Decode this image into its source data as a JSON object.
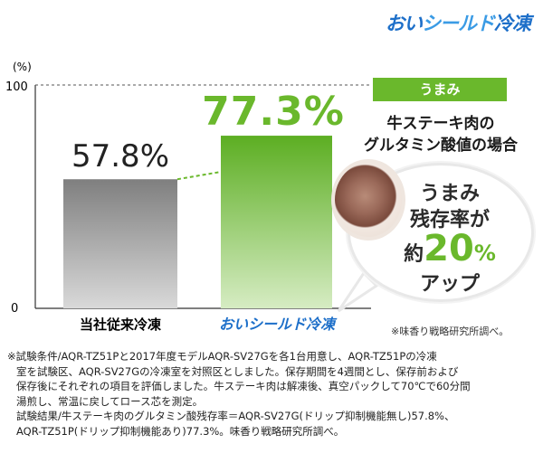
{
  "brand_logo": {
    "prefix": "おい",
    "kana": "シールド",
    "suffix": "冷凍"
  },
  "chart_data": {
    "type": "bar",
    "y_unit": "(%)",
    "ylim": [
      0,
      100
    ],
    "yticks": [
      "100",
      "0"
    ],
    "categories": [
      "当社従来冷凍",
      "おいシールド冷凍"
    ],
    "values": [
      57.8,
      77.3
    ],
    "value_labels": [
      "57.8%",
      "77.3%"
    ],
    "bar_colors": [
      "#9a9a9a",
      "#6ab82c"
    ]
  },
  "tag_label": "うまみ",
  "heading": {
    "line1": "牛ステーキ肉の",
    "line2": "グルタミン酸値の場合"
  },
  "bubble": {
    "line1": "うまみ",
    "line2": "残存率が",
    "prefix": "約",
    "number": "20",
    "unit": "%",
    "line4": "アップ"
  },
  "source_small": "※味香り戦略研究所調べ。",
  "footnote": [
    "※試験条件/AQR-TZ51Pと2017年度モデルAQR-SV27Gを各1台用意し、AQR-TZ51Pの冷凍",
    "室を試験区、AQR-SV27Gの冷凍室を対照区としました。保存期間を4週間とし、保存前および",
    "保存後にそれぞれの項目を評価しました。牛ステーキ肉は解凍後、真空パックして70℃で60分間",
    "湯煎し、常温に戻してロース芯を測定。",
    "試験結果/牛ステーキ肉のグルタミン酸残存率＝AQR-SV27G(ドリップ抑制機能無し)57.8%、",
    "AQR-TZ51P(ドリップ抑制機能あり)77.3%。味香り戦略研究所調べ。"
  ]
}
